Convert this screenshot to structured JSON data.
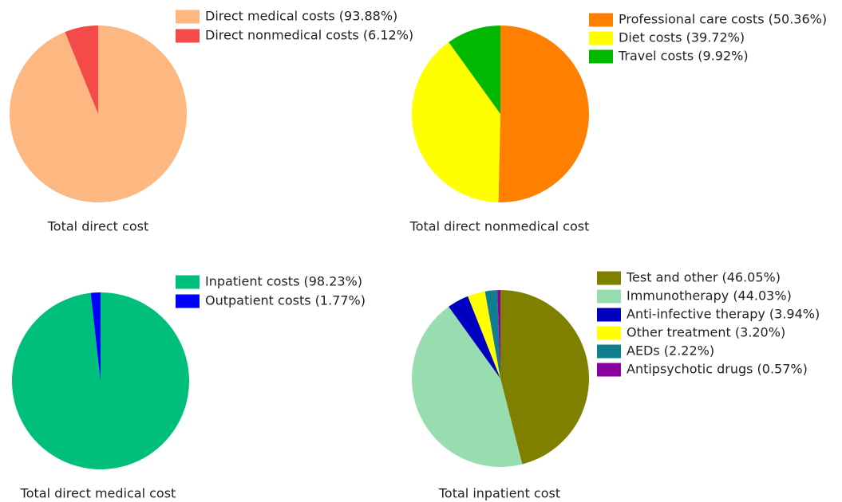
{
  "chart_data": [
    {
      "type": "pie",
      "title": "Total direct cost",
      "categories": [
        "Direct medical costs (93.88%)",
        "Direct nonmedical costs (6.12%)"
      ],
      "values": [
        93.88,
        6.12
      ],
      "colors": [
        "#fdb882",
        "#f44a4a"
      ]
    },
    {
      "type": "pie",
      "title": "Total direct nonmedical cost",
      "categories": [
        "Professional care costs (50.36%)",
        "Diet costs (39.72%)",
        "Travel costs (9.92%)"
      ],
      "values": [
        50.36,
        39.72,
        9.92
      ],
      "colors": [
        "#ff8000",
        "#ffff00",
        "#00b800"
      ]
    },
    {
      "type": "pie",
      "title": "Total direct medical cost",
      "categories": [
        "Inpatient costs (98.23%)",
        "Outpatient costs (1.77%)"
      ],
      "values": [
        98.23,
        1.77
      ],
      "colors": [
        "#00bf7a",
        "#0000ff"
      ]
    },
    {
      "type": "pie",
      "title": "Total inpatient cost",
      "categories": [
        "Test and other (46.05%)",
        "Immunotherapy (44.03%)",
        "Anti-infective therapy (3.94%)",
        "Other treatment (3.20%)",
        "AEDs (2.22%)",
        "Antipsychotic drugs (0.57%)"
      ],
      "values": [
        46.05,
        44.03,
        3.94,
        3.2,
        2.22,
        0.57
      ],
      "colors": [
        "#808000",
        "#98ddb0",
        "#0000c0",
        "#ffff00",
        "#0f7f8f",
        "#8b00a0"
      ]
    }
  ]
}
